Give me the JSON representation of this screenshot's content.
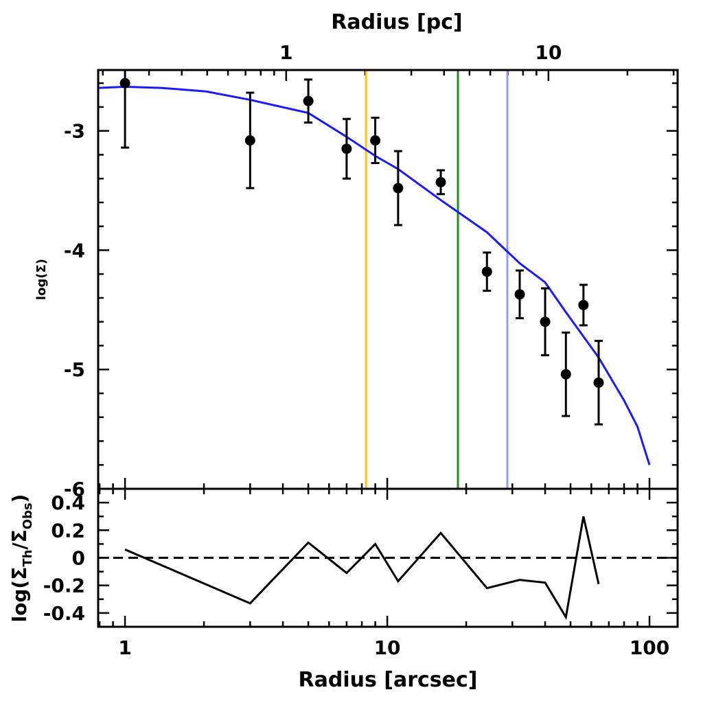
{
  "chart_data": [
    {
      "type": "scatter",
      "x2label": "Radius [pc]",
      "ylabel": "log(Σ)",
      "xscale": "log",
      "xlim": [
        0.79,
        128
      ],
      "x2lim": [
        0.192,
        31.07
      ],
      "x2ticks": [
        1,
        10
      ],
      "x2minorticks": [
        0.2,
        0.3,
        0.4,
        0.5,
        0.6,
        0.7,
        0.8,
        0.9,
        2,
        3,
        4,
        5,
        6,
        7,
        8,
        9,
        20,
        30
      ],
      "ylim": [
        -6,
        -2.49
      ],
      "yticks": [
        -3,
        -4,
        -5,
        -6
      ],
      "yminorticks": [
        -2.6,
        -2.8,
        -3.2,
        -3.4,
        -3.6,
        -3.8,
        -4.2,
        -4.4,
        -4.6,
        -4.8,
        -5.2,
        -5.4,
        -5.6,
        -5.8
      ],
      "points": {
        "color": "#000000",
        "x": [
          1,
          3,
          5,
          7,
          9,
          11,
          16,
          24,
          32,
          40,
          48,
          56,
          64
        ],
        "values": [
          -2.6,
          -3.08,
          -2.75,
          -3.15,
          -3.08,
          -3.48,
          -3.43,
          -4.18,
          -4.37,
          -4.6,
          -5.04,
          -4.46,
          -5.11
        ],
        "errors": [
          0.54,
          0.4,
          0.18,
          0.25,
          0.19,
          0.31,
          0.1,
          0.16,
          0.2,
          0.28,
          0.35,
          0.17,
          0.35
        ]
      },
      "model": {
        "color": "#1a1aff",
        "x": [
          0.79,
          1,
          1.38,
          2.04,
          3,
          5,
          7,
          9,
          11,
          16,
          24,
          32,
          40,
          48,
          64,
          80,
          90,
          100
        ],
        "values": [
          -2.64,
          -2.63,
          -2.64,
          -2.67,
          -2.74,
          -2.85,
          -3.05,
          -3.21,
          -3.32,
          -3.58,
          -3.85,
          -4.11,
          -4.27,
          -4.52,
          -4.9,
          -5.26,
          -5.48,
          -5.8
        ]
      },
      "vlines": {
        "x": [
          8.3,
          18.6,
          28.7
        ],
        "colors": [
          "#ffc125",
          "#1e8c1e",
          "#9999ff"
        ]
      }
    },
    {
      "type": "line",
      "xlabel": "Radius [arcsec]",
      "ylabel": [
        "log(Σ",
        "Th",
        "/Σ",
        "Obs",
        ")"
      ],
      "xscale": "log",
      "xlim": [
        0.79,
        128
      ],
      "xticks": [
        1,
        10,
        100
      ],
      "xminorticks": [
        0.8,
        0.9,
        2,
        3,
        4,
        5,
        6,
        7,
        8,
        9,
        20,
        30,
        40,
        50,
        60,
        70,
        80,
        90
      ],
      "ylim": [
        -0.5,
        0.5
      ],
      "yticks": [
        0.4,
        0.2,
        0,
        -0.2,
        -0.4
      ],
      "yminorticks": [
        0.3,
        0.1,
        -0.1,
        -0.3
      ],
      "refline": 0,
      "color": "#000000",
      "x": [
        1,
        3,
        5,
        7,
        9,
        11,
        16,
        24,
        32,
        40,
        48,
        56,
        64
      ],
      "values": [
        0.06,
        -0.33,
        0.11,
        -0.11,
        0.1,
        -0.17,
        0.18,
        -0.22,
        -0.16,
        -0.18,
        -0.43,
        0.3,
        -0.19
      ]
    }
  ]
}
